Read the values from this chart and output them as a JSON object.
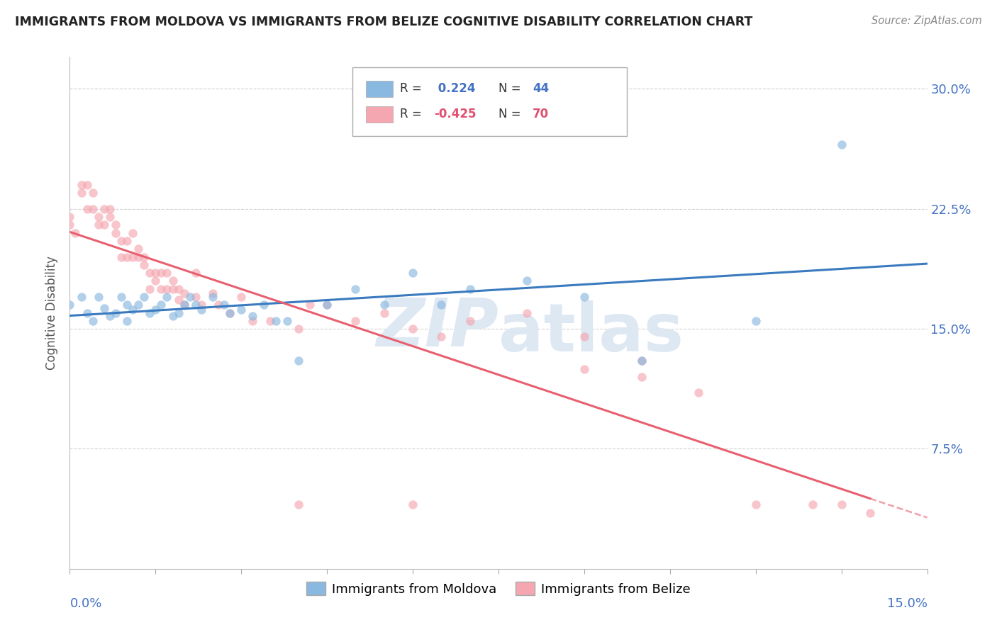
{
  "title": "IMMIGRANTS FROM MOLDOVA VS IMMIGRANTS FROM BELIZE COGNITIVE DISABILITY CORRELATION CHART",
  "source": "Source: ZipAtlas.com",
  "ylabel": "Cognitive Disability",
  "xlim": [
    0.0,
    0.15
  ],
  "ylim": [
    0.0,
    0.32
  ],
  "color_moldova": "#89b8e0",
  "color_belize": "#f4a7b0",
  "color_moldova_line": "#3a7abf",
  "color_belize_line": "#e86070",
  "moldova_scatter_x": [
    0.0,
    0.002,
    0.003,
    0.004,
    0.005,
    0.006,
    0.007,
    0.008,
    0.009,
    0.01,
    0.01,
    0.011,
    0.012,
    0.013,
    0.014,
    0.015,
    0.016,
    0.017,
    0.018,
    0.019,
    0.02,
    0.021,
    0.022,
    0.023,
    0.025,
    0.027,
    0.028,
    0.03,
    0.032,
    0.034,
    0.036,
    0.038,
    0.04,
    0.045,
    0.05,
    0.055,
    0.06,
    0.065,
    0.07,
    0.08,
    0.09,
    0.1,
    0.12,
    0.135
  ],
  "moldova_scatter_y": [
    0.165,
    0.17,
    0.16,
    0.155,
    0.17,
    0.163,
    0.158,
    0.16,
    0.17,
    0.165,
    0.155,
    0.162,
    0.165,
    0.17,
    0.16,
    0.162,
    0.165,
    0.17,
    0.158,
    0.16,
    0.165,
    0.17,
    0.165,
    0.162,
    0.17,
    0.165,
    0.16,
    0.162,
    0.158,
    0.165,
    0.155,
    0.155,
    0.13,
    0.165,
    0.175,
    0.165,
    0.185,
    0.165,
    0.175,
    0.18,
    0.17,
    0.13,
    0.155,
    0.265
  ],
  "belize_scatter_x": [
    0.0,
    0.0,
    0.001,
    0.002,
    0.002,
    0.003,
    0.003,
    0.004,
    0.004,
    0.005,
    0.005,
    0.006,
    0.006,
    0.007,
    0.007,
    0.008,
    0.008,
    0.009,
    0.009,
    0.01,
    0.01,
    0.011,
    0.011,
    0.012,
    0.012,
    0.013,
    0.013,
    0.014,
    0.014,
    0.015,
    0.015,
    0.016,
    0.016,
    0.017,
    0.017,
    0.018,
    0.018,
    0.019,
    0.019,
    0.02,
    0.02,
    0.022,
    0.022,
    0.023,
    0.025,
    0.026,
    0.028,
    0.03,
    0.032,
    0.035,
    0.04,
    0.042,
    0.045,
    0.05,
    0.055,
    0.06,
    0.065,
    0.07,
    0.08,
    0.09,
    0.09,
    0.1,
    0.1,
    0.11,
    0.12,
    0.13,
    0.135,
    0.14,
    0.04,
    0.06
  ],
  "belize_scatter_y": [
    0.22,
    0.215,
    0.21,
    0.235,
    0.24,
    0.225,
    0.24,
    0.235,
    0.225,
    0.22,
    0.215,
    0.225,
    0.215,
    0.225,
    0.22,
    0.215,
    0.21,
    0.205,
    0.195,
    0.205,
    0.195,
    0.21,
    0.195,
    0.2,
    0.195,
    0.195,
    0.19,
    0.185,
    0.175,
    0.185,
    0.18,
    0.175,
    0.185,
    0.175,
    0.185,
    0.18,
    0.175,
    0.175,
    0.168,
    0.172,
    0.165,
    0.17,
    0.185,
    0.165,
    0.172,
    0.165,
    0.16,
    0.17,
    0.155,
    0.155,
    0.15,
    0.165,
    0.165,
    0.155,
    0.16,
    0.15,
    0.145,
    0.155,
    0.16,
    0.145,
    0.125,
    0.13,
    0.12,
    0.11,
    0.04,
    0.04,
    0.04,
    0.035,
    0.04,
    0.04
  ],
  "ytick_vals": [
    0.075,
    0.15,
    0.225,
    0.3
  ],
  "ytick_labels": [
    "7.5%",
    "15.0%",
    "22.5%",
    "30.0%"
  ],
  "legend_r1": "R = ",
  "legend_v1": " 0.224",
  "legend_n1": "N = ",
  "legend_v1n": "44",
  "legend_r2": "R = ",
  "legend_v2": "-0.425",
  "legend_n2": "N = ",
  "legend_v2n": "70"
}
